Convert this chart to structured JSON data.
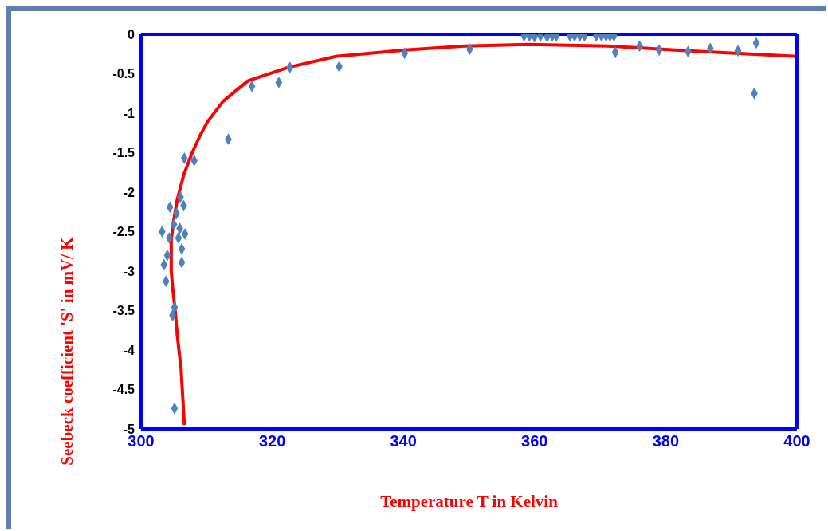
{
  "chart_data": {
    "type": "scatter",
    "xlabel": "Temperature T in Kelvin",
    "ylabel": "Seebeck coefficient 'S' in mV/ K",
    "xlim": [
      300,
      400
    ],
    "xticks": [
      300,
      320,
      340,
      360,
      380,
      400
    ],
    "ylim": [
      -5,
      0
    ],
    "yticks": [
      -5,
      -4.5,
      -4,
      -3.5,
      -3,
      -2.5,
      -2,
      -1.5,
      -1,
      -0.5,
      0
    ],
    "series": [
      {
        "color": "#4f81bd",
        "marker": "diamond",
        "x": [
          303.2,
          303.5,
          303.8,
          304.0,
          304.3,
          304.4,
          304.8,
          305.1,
          305.1,
          305.4,
          305.7,
          306.0,
          306.2,
          306.2,
          306.5,
          306.7,
          305.9,
          305.0,
          306.6,
          308.1,
          313.3,
          316.9,
          321.0,
          322.7,
          330.2,
          340.2,
          350.1,
          358.4,
          359.2,
          360.0,
          360.9,
          361.9,
          362.7,
          363.3,
          365.4,
          366.1,
          366.9,
          367.6,
          369.4,
          370.2,
          370.9,
          371.5,
          372.1,
          372.3,
          376.0,
          379.0,
          383.4,
          386.8,
          391.0,
          393.8,
          393.5
        ],
        "values": [
          -2.5,
          -2.92,
          -3.13,
          -2.8,
          -2.58,
          -2.19,
          -3.56,
          -3.46,
          -4.74,
          -2.27,
          -2.58,
          -2.06,
          -2.89,
          -2.72,
          -2.17,
          -2.53,
          -2.46,
          -2.41,
          -1.57,
          -1.6,
          -1.33,
          -0.66,
          -0.61,
          -0.42,
          -0.41,
          -0.24,
          -0.19,
          -0.02,
          -0.02,
          -0.03,
          -0.02,
          -0.03,
          -0.02,
          -0.02,
          -0.02,
          -0.02,
          -0.02,
          -0.02,
          -0.02,
          -0.02,
          -0.02,
          -0.02,
          -0.02,
          -0.23,
          -0.15,
          -0.2,
          -0.22,
          -0.18,
          -0.21,
          -0.11,
          -0.75
        ]
      },
      {
        "type": "line",
        "color": "#ff0000",
        "marker": "none",
        "line_style": "solid",
        "x": [
          306.6,
          306.1,
          305.5,
          305.2,
          304.8,
          304.6,
          304.6,
          304.9,
          305.5,
          306.5,
          307.8,
          309.0,
          310.2,
          312.5,
          316.3,
          322.4,
          329.7,
          340.2,
          349.3,
          359.0,
          371.3,
          383.5,
          400.0
        ],
        "values": [
          -4.95,
          -4.24,
          -3.8,
          -3.5,
          -3.2,
          -3.0,
          -2.6,
          -2.4,
          -2.1,
          -1.78,
          -1.5,
          -1.28,
          -1.1,
          -0.85,
          -0.59,
          -0.42,
          -0.28,
          -0.2,
          -0.15,
          -0.13,
          -0.15,
          -0.21,
          -0.28
        ]
      }
    ]
  }
}
